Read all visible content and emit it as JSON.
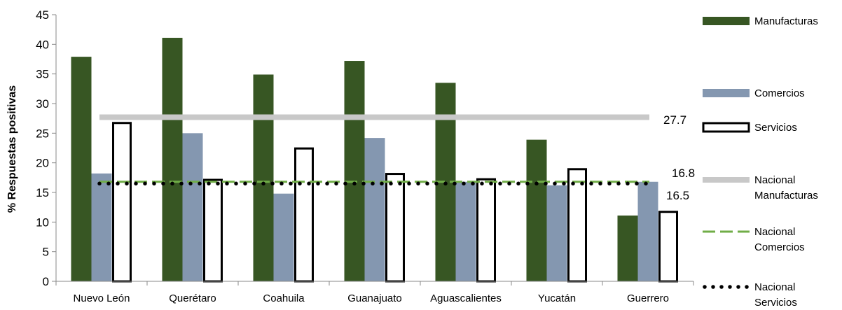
{
  "chart_data": {
    "type": "bar",
    "ylabel": "% Respuestas positivas",
    "ylim": [
      0,
      45
    ],
    "yticks": [
      0,
      5,
      10,
      15,
      20,
      25,
      30,
      35,
      40,
      45
    ],
    "grid": false,
    "legend_position": "right",
    "categories": [
      "Nuevo León",
      "Querétaro",
      "Coahuila",
      "Guanajuato",
      "Aguascalientes",
      "Yucatán",
      "Guerrero"
    ],
    "series": [
      {
        "name": "Manufacturas",
        "values": [
          37.9,
          41.1,
          34.9,
          37.2,
          33.5,
          23.9,
          11.1
        ],
        "color": "#375623",
        "style": "solid"
      },
      {
        "name": "Comercios",
        "values": [
          18.2,
          25.0,
          14.8,
          24.2,
          16.8,
          16.2,
          16.8
        ],
        "color": "#8497B0",
        "style": "solid"
      },
      {
        "name": "Servicios",
        "values": [
          26.9,
          17.3,
          22.6,
          18.3,
          17.4,
          19.1,
          11.9
        ],
        "color": "#000000",
        "style": "outline"
      }
    ],
    "reference_lines": [
      {
        "name": [
          "Nacional",
          "Manufacturas"
        ],
        "value": 27.7,
        "label": "27.7",
        "color": "#C8C8C8",
        "style": "solid-thick"
      },
      {
        "name": [
          "Nacional",
          "Comercios"
        ],
        "value": 16.8,
        "label": "16.8",
        "color": "#70AD47",
        "style": "dashed"
      },
      {
        "name": [
          "Nacional",
          "Servicios"
        ],
        "value": 16.5,
        "label": "16.5",
        "color": "#000000",
        "style": "dotted"
      }
    ]
  }
}
